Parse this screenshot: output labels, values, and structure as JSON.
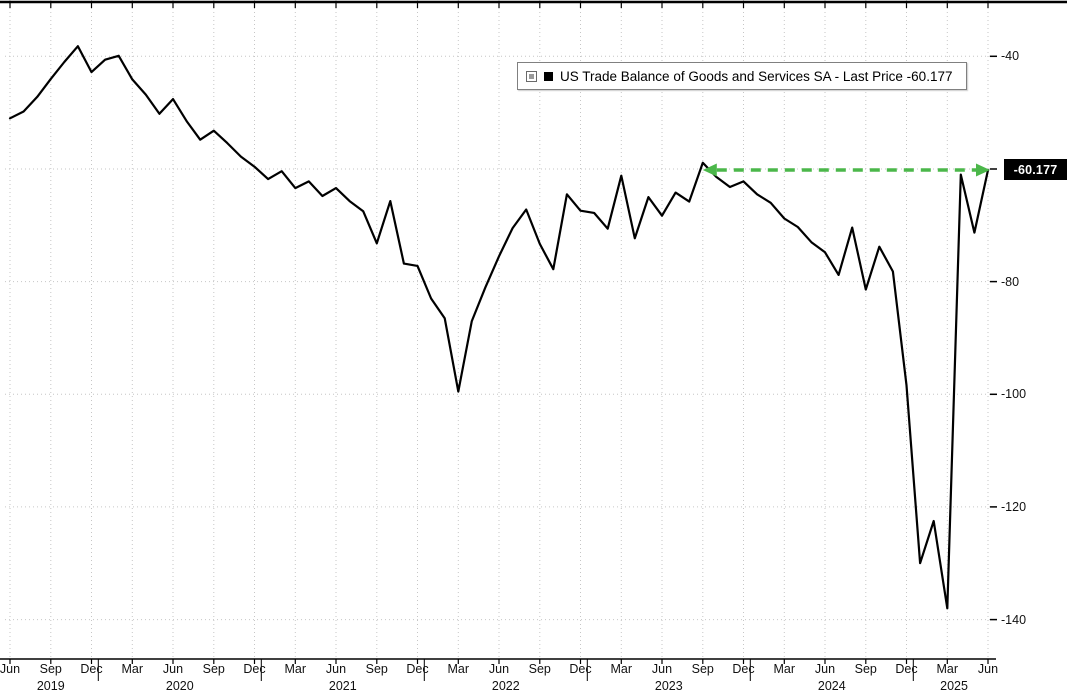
{
  "legend": {
    "label": "US Trade Balance of Goods and Services SA - Last Price -60.177"
  },
  "last_price_badge": {
    "text": "-60.177",
    "bg": "#000000",
    "fg": "#ffffff"
  },
  "axis": {
    "visible_y_tick_labels": [
      "-40",
      "-80",
      "-100",
      "-120",
      "-140"
    ],
    "hidden_y_tick_label": "-60"
  },
  "chart_data": {
    "type": "line",
    "title": "US Trade Balance of Goods and Services SA",
    "last_price": -60.177,
    "grid": "dotted",
    "legend_position": "top-center",
    "ylim": [
      -147,
      -30
    ],
    "y_ticks": [
      -40,
      -60,
      -80,
      -100,
      -120,
      -140
    ],
    "hidden_tick": -60,
    "x_tick_every": 3,
    "x": [
      "2019-06",
      "2019-07",
      "2019-08",
      "2019-09",
      "2019-10",
      "2019-11",
      "2019-12",
      "2020-01",
      "2020-02",
      "2020-03",
      "2020-04",
      "2020-05",
      "2020-06",
      "2020-07",
      "2020-08",
      "2020-09",
      "2020-10",
      "2020-11",
      "2020-12",
      "2021-01",
      "2021-02",
      "2021-03",
      "2021-04",
      "2021-05",
      "2021-06",
      "2021-07",
      "2021-08",
      "2021-09",
      "2021-10",
      "2021-11",
      "2021-12",
      "2022-01",
      "2022-02",
      "2022-03",
      "2022-04",
      "2022-05",
      "2022-06",
      "2022-07",
      "2022-08",
      "2022-09",
      "2022-10",
      "2022-11",
      "2022-12",
      "2023-01",
      "2023-02",
      "2023-03",
      "2023-04",
      "2023-05",
      "2023-06",
      "2023-07",
      "2023-08",
      "2023-09",
      "2023-10",
      "2023-11",
      "2023-12",
      "2024-01",
      "2024-02",
      "2024-03",
      "2024-04",
      "2024-05",
      "2024-06",
      "2024-07",
      "2024-08",
      "2024-09",
      "2024-10",
      "2024-11",
      "2024-12",
      "2025-01",
      "2025-02",
      "2025-03",
      "2025-04",
      "2025-05",
      "2025-06"
    ],
    "series": [
      {
        "name": "US Trade Balance of Goods and Services SA",
        "color": "#000000",
        "values": [
          -51.0,
          -49.8,
          -47.2,
          -44.0,
          -41.0,
          -38.2,
          -42.8,
          -40.6,
          -39.9,
          -44.1,
          -46.8,
          -50.2,
          -47.6,
          -51.5,
          -54.8,
          -53.2,
          -55.4,
          -57.8,
          -59.6,
          -61.8,
          -60.4,
          -63.4,
          -62.2,
          -64.8,
          -63.4,
          -65.7,
          -67.5,
          -73.2,
          -65.7,
          -76.8,
          -77.2,
          -83.0,
          -86.5,
          -99.5,
          -87.0,
          -81.0,
          -75.5,
          -70.5,
          -67.2,
          -73.3,
          -77.8,
          -64.5,
          -67.4,
          -67.8,
          -70.6,
          -61.2,
          -72.3,
          -65.0,
          -68.3,
          -64.2,
          -65.8,
          -58.9,
          -61.4,
          -63.2,
          -62.2,
          -64.5,
          -66.0,
          -68.8,
          -70.3,
          -73.0,
          -74.8,
          -78.8,
          -70.4,
          -81.4,
          -73.8,
          -78.2,
          -98.4,
          -130.0,
          -122.5,
          -138.0,
          -61.0,
          -71.3,
          -60.177
        ]
      }
    ],
    "year_labels": [
      {
        "label": "2019",
        "index": 3
      },
      {
        "label": "2020",
        "index": 12.5
      },
      {
        "label": "2021",
        "index": 24.5
      },
      {
        "label": "2022",
        "index": 36.5
      },
      {
        "label": "2023",
        "index": 48.5
      },
      {
        "label": "2024",
        "index": 60.5
      },
      {
        "label": "2025",
        "index": 69.5
      }
    ],
    "reference_line": {
      "value": -60.177,
      "color": "#4bb74a",
      "style": "dashed",
      "from_x": "2023-09",
      "arrows": "both-ends"
    }
  }
}
